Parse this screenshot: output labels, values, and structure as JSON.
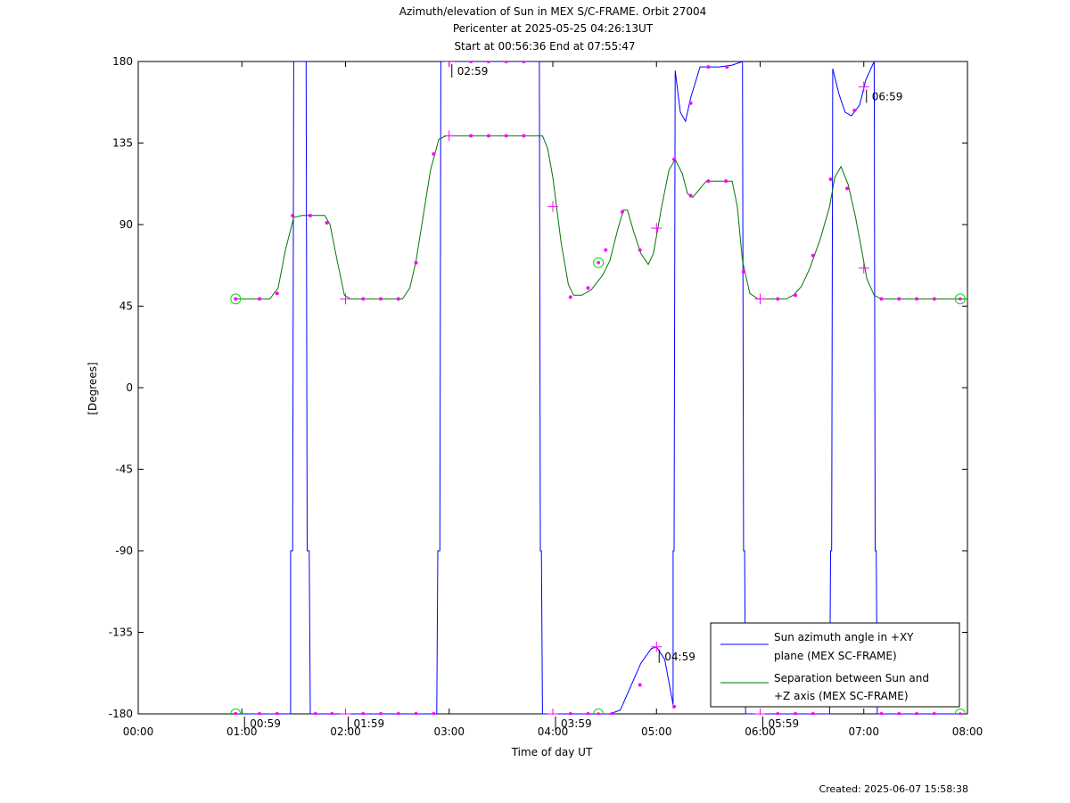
{
  "header": {
    "title_line1": "Azimuth/elevation of Sun in MEX S/C-FRAME.  Orbit 27004",
    "title_line2": "Pericenter at 2025-05-25 04:26:13UT",
    "title_line3": "Start at 00:56:36 End at 07:55:47"
  },
  "footer": {
    "created": "Created: 2025-06-07 15:58:38"
  },
  "colors": {
    "azimuth": "#0000ff",
    "separation": "#007700",
    "marker": "#ff00ff",
    "circle": "#00dd00"
  },
  "chart_data": {
    "type": "line",
    "xlabel": "Time of day UT",
    "ylabel": "[Degrees]",
    "xlim": [
      0,
      8
    ],
    "ylim": [
      -180,
      180
    ],
    "x_ticks": [
      {
        "v": 0,
        "label": "00:00"
      },
      {
        "v": 1,
        "label": "01:00"
      },
      {
        "v": 2,
        "label": "02:00"
      },
      {
        "v": 3,
        "label": "03:00"
      },
      {
        "v": 4,
        "label": "04:00"
      },
      {
        "v": 5,
        "label": "05:00"
      },
      {
        "v": 6,
        "label": "06:00"
      },
      {
        "v": 7,
        "label": "07:00"
      },
      {
        "v": 8,
        "label": "08:00"
      }
    ],
    "y_ticks": [
      {
        "v": 180,
        "label": "180"
      },
      {
        "v": 135,
        "label": "135"
      },
      {
        "v": 90,
        "label": "90"
      },
      {
        "v": 45,
        "label": "45"
      },
      {
        "v": 0,
        "label": "0"
      },
      {
        "v": -45,
        "label": "-45"
      },
      {
        "v": -90,
        "label": "-90"
      },
      {
        "v": -135,
        "label": "-135"
      },
      {
        "v": -180,
        "label": "-180"
      }
    ],
    "legend_position": "bottom-right",
    "series": [
      {
        "name": "Sun azimuth angle in +XY plane (MEX SC-FRAME)",
        "legend_lines": [
          "Sun azimuth angle in +XY",
          "plane (MEX SC-FRAME)"
        ],
        "color": "#0000ff",
        "points": [
          [
            0.94,
            -180
          ],
          [
            1.47,
            -180
          ],
          [
            1.47,
            -90
          ],
          [
            1.49,
            -90
          ],
          [
            1.5,
            180
          ],
          [
            1.62,
            180
          ],
          [
            1.63,
            -90
          ],
          [
            1.65,
            -90
          ],
          [
            1.66,
            -180
          ],
          [
            2.88,
            -180
          ],
          [
            2.89,
            -90
          ],
          [
            2.91,
            -90
          ],
          [
            2.92,
            180
          ],
          [
            3.87,
            180
          ],
          [
            3.88,
            -90
          ],
          [
            3.89,
            -90
          ],
          [
            3.9,
            -180
          ],
          [
            4.45,
            -180
          ],
          [
            4.55,
            -180
          ],
          [
            4.65,
            -178
          ],
          [
            4.75,
            -165
          ],
          [
            4.85,
            -152
          ],
          [
            4.95,
            -144
          ],
          [
            5.0,
            -143
          ],
          [
            5.08,
            -150
          ],
          [
            5.16,
            -175
          ],
          [
            5.16,
            -90
          ],
          [
            5.17,
            -90
          ],
          [
            5.18,
            175
          ],
          [
            5.23,
            152
          ],
          [
            5.28,
            147
          ],
          [
            5.33,
            160
          ],
          [
            5.42,
            177
          ],
          [
            5.6,
            177
          ],
          [
            5.73,
            178
          ],
          [
            5.83,
            180
          ],
          [
            5.84,
            -90
          ],
          [
            5.85,
            -90
          ],
          [
            5.86,
            -180
          ],
          [
            6.67,
            -180
          ],
          [
            6.68,
            -90
          ],
          [
            6.69,
            -90
          ],
          [
            6.7,
            176
          ],
          [
            6.76,
            162
          ],
          [
            6.82,
            152
          ],
          [
            6.88,
            150
          ],
          [
            6.96,
            156
          ],
          [
            7.02,
            170
          ],
          [
            7.1,
            180
          ],
          [
            7.11,
            -90
          ],
          [
            7.12,
            -90
          ],
          [
            7.13,
            -180
          ],
          [
            7.93,
            -180
          ]
        ]
      },
      {
        "name": "Separation between Sun and +Z axis (MEX SC-FRAME)",
        "legend_lines": [
          "Separation between Sun and",
          "+Z axis (MEX SC-FRAME)"
        ],
        "color": "#007700",
        "points": [
          [
            0.94,
            49
          ],
          [
            1.27,
            49
          ],
          [
            1.35,
            55
          ],
          [
            1.42,
            76
          ],
          [
            1.5,
            94
          ],
          [
            1.58,
            95
          ],
          [
            1.8,
            95
          ],
          [
            1.85,
            90
          ],
          [
            1.92,
            70
          ],
          [
            1.99,
            51
          ],
          [
            2.05,
            49
          ],
          [
            2.55,
            49
          ],
          [
            2.62,
            55
          ],
          [
            2.68,
            70
          ],
          [
            2.75,
            95
          ],
          [
            2.82,
            120
          ],
          [
            2.9,
            137
          ],
          [
            2.97,
            139
          ],
          [
            3.9,
            139
          ],
          [
            3.95,
            132
          ],
          [
            4.0,
            116
          ],
          [
            4.08,
            80
          ],
          [
            4.15,
            57
          ],
          [
            4.2,
            51
          ],
          [
            4.28,
            51
          ],
          [
            4.37,
            54
          ],
          [
            4.48,
            62
          ],
          [
            4.55,
            70
          ],
          [
            4.62,
            86
          ],
          [
            4.68,
            98
          ],
          [
            4.72,
            98
          ],
          [
            4.78,
            86
          ],
          [
            4.85,
            74
          ],
          [
            4.92,
            68
          ],
          [
            4.97,
            74
          ],
          [
            5.05,
            100
          ],
          [
            5.12,
            120
          ],
          [
            5.18,
            126
          ],
          [
            5.25,
            118
          ],
          [
            5.3,
            107
          ],
          [
            5.35,
            105
          ],
          [
            5.48,
            114
          ],
          [
            5.73,
            114
          ],
          [
            5.78,
            100
          ],
          [
            5.83,
            70
          ],
          [
            5.9,
            52
          ],
          [
            5.98,
            49
          ],
          [
            6.25,
            49
          ],
          [
            6.32,
            51
          ],
          [
            6.4,
            56
          ],
          [
            6.48,
            66
          ],
          [
            6.58,
            82
          ],
          [
            6.67,
            100
          ],
          [
            6.72,
            116
          ],
          [
            6.78,
            122
          ],
          [
            6.85,
            112
          ],
          [
            6.92,
            94
          ],
          [
            6.98,
            76
          ],
          [
            7.03,
            60
          ],
          [
            7.1,
            51
          ],
          [
            7.17,
            49
          ],
          [
            8.0,
            49
          ]
        ]
      }
    ],
    "markers": [
      {
        "x": 0.94,
        "y": -180
      },
      {
        "x": 1.17,
        "y": -180
      },
      {
        "x": 1.34,
        "y": -180
      },
      {
        "x": 1.71,
        "y": -180
      },
      {
        "x": 1.87,
        "y": -180
      },
      {
        "x": 2.17,
        "y": -180
      },
      {
        "x": 2.34,
        "y": -180
      },
      {
        "x": 2.51,
        "y": -180
      },
      {
        "x": 2.68,
        "y": -180
      },
      {
        "x": 2.85,
        "y": -180
      },
      {
        "x": 3.21,
        "y": 180
      },
      {
        "x": 3.38,
        "y": 180
      },
      {
        "x": 3.55,
        "y": 180
      },
      {
        "x": 3.72,
        "y": 180
      },
      {
        "x": 4.17,
        "y": -180
      },
      {
        "x": 4.34,
        "y": -180
      },
      {
        "x": 4.57,
        "y": -180
      },
      {
        "x": 4.84,
        "y": -164
      },
      {
        "x": 5.17,
        "y": -176
      },
      {
        "x": 5.33,
        "y": 157
      },
      {
        "x": 5.5,
        "y": 177
      },
      {
        "x": 5.68,
        "y": 177
      },
      {
        "x": 6.17,
        "y": -180
      },
      {
        "x": 6.34,
        "y": -180
      },
      {
        "x": 6.51,
        "y": -180
      },
      {
        "x": 6.91,
        "y": 153
      },
      {
        "x": 7.17,
        "y": -180
      },
      {
        "x": 7.34,
        "y": -180
      },
      {
        "x": 7.51,
        "y": -180
      },
      {
        "x": 7.68,
        "y": -180
      },
      {
        "x": 0.94,
        "y": 49
      },
      {
        "x": 1.17,
        "y": 49
      },
      {
        "x": 1.34,
        "y": 52
      },
      {
        "x": 1.49,
        "y": 95
      },
      {
        "x": 1.66,
        "y": 95
      },
      {
        "x": 1.82,
        "y": 91
      },
      {
        "x": 2.17,
        "y": 49
      },
      {
        "x": 2.34,
        "y": 49
      },
      {
        "x": 2.51,
        "y": 49
      },
      {
        "x": 2.68,
        "y": 69
      },
      {
        "x": 2.85,
        "y": 129
      },
      {
        "x": 3.21,
        "y": 139
      },
      {
        "x": 3.38,
        "y": 139
      },
      {
        "x": 3.55,
        "y": 139
      },
      {
        "x": 3.72,
        "y": 139
      },
      {
        "x": 4.17,
        "y": 50
      },
      {
        "x": 4.34,
        "y": 55
      },
      {
        "x": 4.51,
        "y": 76
      },
      {
        "x": 4.67,
        "y": 97
      },
      {
        "x": 4.84,
        "y": 76
      },
      {
        "x": 5.17,
        "y": 126
      },
      {
        "x": 5.33,
        "y": 106
      },
      {
        "x": 5.5,
        "y": 114
      },
      {
        "x": 5.67,
        "y": 114
      },
      {
        "x": 5.84,
        "y": 64
      },
      {
        "x": 6.17,
        "y": 49
      },
      {
        "x": 6.34,
        "y": 51
      },
      {
        "x": 6.51,
        "y": 73
      },
      {
        "x": 6.68,
        "y": 115
      },
      {
        "x": 6.84,
        "y": 110
      },
      {
        "x": 7.17,
        "y": 49
      },
      {
        "x": 7.34,
        "y": 49
      },
      {
        "x": 7.51,
        "y": 49
      },
      {
        "x": 7.68,
        "y": 49
      }
    ],
    "crosses": [
      {
        "x": 2.0,
        "y": -180
      },
      {
        "x": 2.0,
        "y": 49
      },
      {
        "x": 3.0,
        "y": 180
      },
      {
        "x": 3.0,
        "y": 139
      },
      {
        "x": 4.0,
        "y": -180
      },
      {
        "x": 4.0,
        "y": 100
      },
      {
        "x": 5.0,
        "y": -143
      },
      {
        "x": 5.0,
        "y": 88
      },
      {
        "x": 6.0,
        "y": -180
      },
      {
        "x": 6.0,
        "y": 49
      },
      {
        "x": 7.0,
        "y": 166
      },
      {
        "x": 7.0,
        "y": 66
      }
    ],
    "circles": [
      {
        "x": 0.94,
        "y": 49
      },
      {
        "x": 0.94,
        "y": -180
      },
      {
        "x": 4.44,
        "y": 69
      },
      {
        "x": 4.44,
        "y": -180
      },
      {
        "x": 7.93,
        "y": 49
      },
      {
        "x": 7.93,
        "y": -180
      }
    ],
    "annotations": [
      {
        "x": 1.0,
        "y": -180,
        "label": "00:59"
      },
      {
        "x": 2.0,
        "y": -180,
        "label": "01:59"
      },
      {
        "x": 3.0,
        "y": 180,
        "label": "02:59"
      },
      {
        "x": 4.0,
        "y": -180,
        "label": "03:59"
      },
      {
        "x": 5.0,
        "y": -143,
        "label": "04:59"
      },
      {
        "x": 6.0,
        "y": -180,
        "label": "05:59"
      },
      {
        "x": 7.0,
        "y": 166,
        "label": "06:59"
      }
    ]
  }
}
